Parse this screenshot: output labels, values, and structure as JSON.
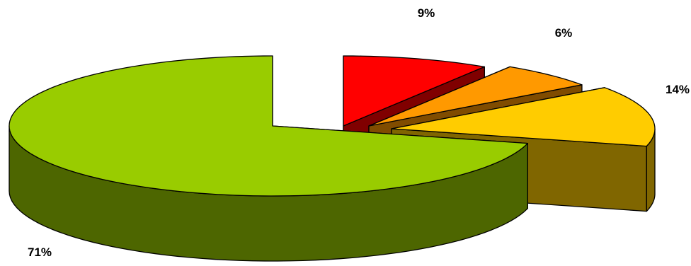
{
  "chart_data": {
    "type": "pie",
    "style": "3d-exploded",
    "title": "",
    "slices": [
      {
        "label": "9%",
        "value": 9,
        "top_color": "#ff0000",
        "side_color": "#800000"
      },
      {
        "label": "6%",
        "value": 6,
        "top_color": "#ff9900",
        "side_color": "#804c00"
      },
      {
        "label": "14%",
        "value": 14,
        "top_color": "#ffcc00",
        "side_color": "#806600"
      },
      {
        "label": "71%",
        "value": 71,
        "top_color": "#99cc00",
        "side_color": "#4d6600"
      }
    ],
    "legend": "none",
    "grid": false
  }
}
